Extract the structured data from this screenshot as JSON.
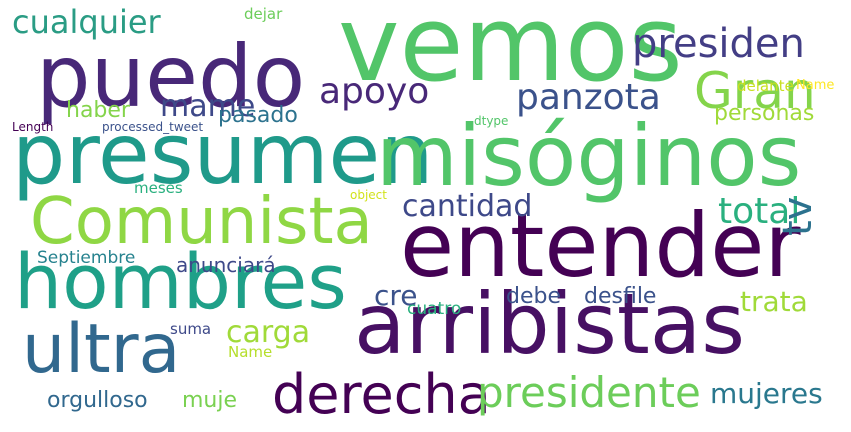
{
  "palette": {
    "background": "#ffffff",
    "yellow": "#d2e21b",
    "light_green": "#84d44b",
    "green": "#52c569",
    "teal_green": "#2ab07f",
    "teal": "#1fa088",
    "blue_teal": "#26828e",
    "blue": "#31688e",
    "indigo": "#3e4989",
    "purple": "#482878",
    "dark_purple": "#440154"
  },
  "words": [
    {
      "text": "vemos",
      "color": "#52c569"
    },
    {
      "text": "puedo",
      "color": "#482878"
    },
    {
      "text": "presumen",
      "color": "#1f9a8a"
    },
    {
      "text": "misóginos",
      "color": "#52c569"
    },
    {
      "text": "entender",
      "color": "#440154"
    },
    {
      "text": "hombres",
      "color": "#1fa088"
    },
    {
      "text": "arribistas",
      "color": "#471063"
    },
    {
      "text": "Comunista",
      "color": "#8fd744"
    },
    {
      "text": "ultra",
      "color": "#31688e"
    },
    {
      "text": "derecha",
      "color": "#440154"
    },
    {
      "text": "presidente",
      "color": "#6ccd5a"
    },
    {
      "text": "Gran",
      "color": "#84d44b"
    },
    {
      "text": "presiden",
      "color": "#433e85"
    },
    {
      "text": "panzota",
      "color": "#3b528b"
    },
    {
      "text": "apoyo",
      "color": "#482878"
    },
    {
      "text": "cualquier",
      "color": "#2a9c84"
    },
    {
      "text": "mame",
      "color": "#3e4989"
    },
    {
      "text": "cantidad",
      "color": "#3e4989"
    },
    {
      "text": "total",
      "color": "#2ab07f"
    },
    {
      "text": "tv",
      "color": "#2c728e"
    },
    {
      "text": "cre",
      "color": "#3b528b"
    },
    {
      "text": "carga",
      "color": "#a0da39"
    },
    {
      "text": "trata",
      "color": "#a0da39"
    },
    {
      "text": "mujeres",
      "color": "#2a788e"
    },
    {
      "text": "haber",
      "color": "#84d44b"
    },
    {
      "text": "pasado",
      "color": "#2c728e"
    },
    {
      "text": "anunciará",
      "color": "#3e4989"
    },
    {
      "text": "Septiembre",
      "color": "#26828e"
    },
    {
      "text": "debe",
      "color": "#3b528b"
    },
    {
      "text": "desfile",
      "color": "#3b528b"
    },
    {
      "text": "cuatro",
      "color": "#2ab07f"
    },
    {
      "text": "orgulloso",
      "color": "#31688e"
    },
    {
      "text": "muje",
      "color": "#7ad151"
    },
    {
      "text": "suma",
      "color": "#3e4989"
    },
    {
      "text": "Name",
      "color": "#b5de2b"
    },
    {
      "text": "personas",
      "color": "#a0da39"
    },
    {
      "text": "delante",
      "color": "#c8e020"
    },
    {
      "text": "dejar",
      "color": "#6ccd5a"
    },
    {
      "text": "meses",
      "color": "#2ab07f"
    },
    {
      "text": "Length",
      "color": "#440154"
    },
    {
      "text": "processed_tweet",
      "color": "#3b528b"
    },
    {
      "text": "dtype",
      "color": "#52c569"
    },
    {
      "text": "object",
      "color": "#d2e21b"
    },
    {
      "text": "Name",
      "color": "#fde725"
    }
  ]
}
